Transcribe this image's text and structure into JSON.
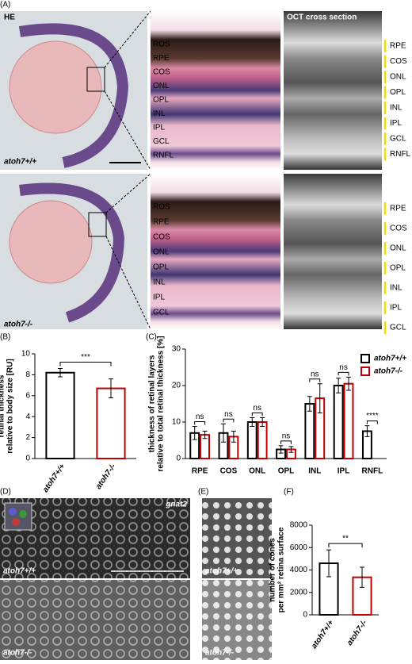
{
  "panel_labels": [
    "(A)",
    "(B)",
    "(C)",
    "(D)",
    "(E)",
    "(F)"
  ],
  "panel_a": {
    "he_label": "HE",
    "oct_label": "OCT cross section",
    "genotypes": [
      "atoh7+/+",
      "atoh7-/-"
    ],
    "histology_layers": [
      [
        "ROS",
        "RPE",
        "COS",
        "ONL",
        "OPL",
        "INL",
        "IPL",
        "GCL",
        "RNFL"
      ],
      [
        "ROS",
        "RPE",
        "COS",
        "ONL",
        "OPL",
        "INL",
        "IPL",
        "GCL"
      ]
    ],
    "oct_layers": [
      [
        "RPE",
        "COS",
        "ONL",
        "OPL",
        "INL",
        "IPL",
        "GCL",
        "RNFL"
      ],
      [
        "RPE",
        "COS",
        "ONL",
        "OPL",
        "INL",
        "IPL",
        "GCL"
      ]
    ]
  },
  "panel_d": {
    "stain": "gnat2",
    "genotypes": [
      "atoh7+/+",
      "atoh7-/-"
    ]
  },
  "panel_e": {
    "genotypes": [
      "atoh7+/+",
      "atoh7-/-"
    ]
  },
  "chart_data": [
    {
      "type": "bar",
      "ylabel": [
        "retinal thickness",
        "relative to body size [RU]"
      ],
      "categories": [
        "atoh7+/+",
        "atoh7-/-"
      ],
      "values": [
        8.2,
        6.7
      ],
      "errors": [
        0.4,
        0.9
      ],
      "colors": [
        "#000000",
        "#c00000"
      ],
      "ylim": [
        0,
        10
      ],
      "yticks": [
        0,
        2,
        4,
        6,
        8,
        10
      ],
      "significance": "***"
    },
    {
      "type": "grouped-bar",
      "ylabel": [
        "thickness of retinal layers",
        "relative to total retinal thickness [%]"
      ],
      "categories": [
        "RPE",
        "COS",
        "ONL",
        "OPL",
        "INL",
        "IPL",
        "RNFL"
      ],
      "series": [
        {
          "name": "atoh7+/+",
          "color": "#000000",
          "values": [
            7,
            7,
            10,
            2.5,
            15,
            20,
            7.5
          ],
          "errors": [
            1.8,
            2.5,
            1.2,
            1,
            2,
            2,
            1.5
          ]
        },
        {
          "name": "atoh7-/-",
          "color": "#c00000",
          "values": [
            6.5,
            6,
            10,
            2.5,
            16.5,
            20.5,
            0
          ],
          "errors": [
            1,
            1.5,
            1.2,
            0.8,
            4,
            1.8,
            0
          ]
        }
      ],
      "significance": [
        "ns",
        "ns",
        "ns",
        "ns",
        "ns",
        "ns",
        "****"
      ],
      "ylim": [
        0,
        30
      ],
      "yticks": [
        0,
        10,
        20,
        30
      ]
    },
    {
      "type": "bar",
      "ylabel": [
        "number of cones",
        "per mm² retina surface"
      ],
      "categories": [
        "atoh7+/+",
        "atoh7-/-"
      ],
      "values": [
        4600,
        3350
      ],
      "errors": [
        1200,
        900
      ],
      "colors": [
        "#000000",
        "#c00000"
      ],
      "ylim": [
        0,
        8000
      ],
      "yticks": [
        0,
        2000,
        4000,
        6000,
        8000
      ],
      "significance": "**"
    }
  ]
}
